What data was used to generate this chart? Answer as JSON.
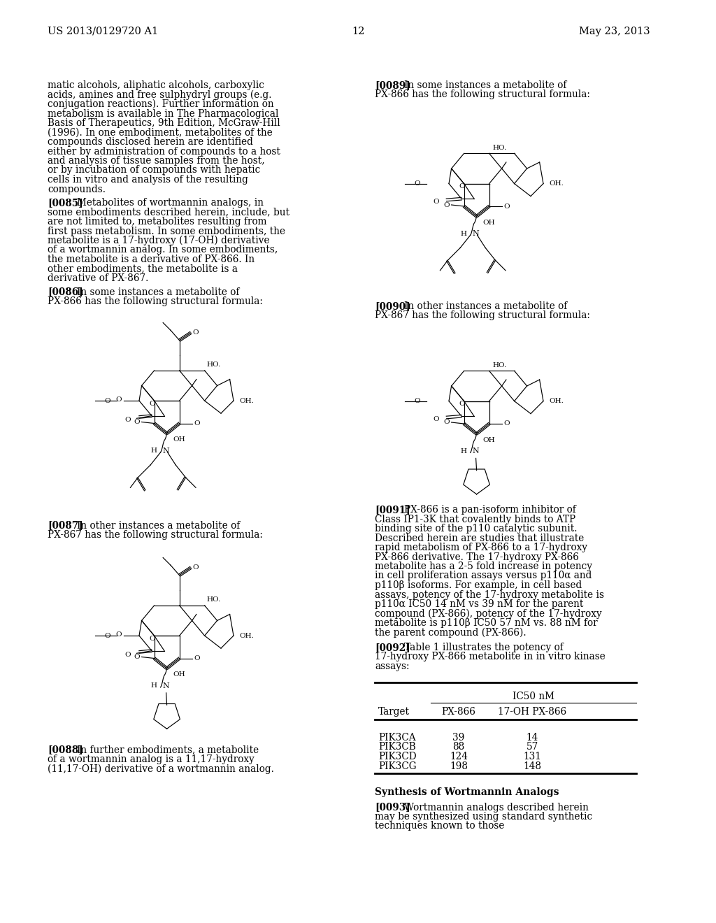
{
  "header_left": "US 2013/0129720 A1",
  "header_right": "May 23, 2013",
  "page_number": "12",
  "bg": "#ffffff",
  "para0": "matic alcohols, aliphatic alcohols, carboxylic acids, amines and free sulphydryl groups (e.g. conjugation reactions). Further information on metabolism is available in The Pharmacological Basis of Therapeutics, 9th Edition, McGraw-Hill (1996). In one embodiment, metabolites of the compounds disclosed herein are identified either by administration of compounds to a host and analysis of tissue samples from the host, or by incubation of compounds with hepatic cells in vitro and analysis of the resulting compounds.",
  "para85_tag": "[0085]",
  "para85": "Metabolites of wortmannin analogs, in some embodiments described herein, include, but are not limited to, metabolites resulting from first pass metabolism. In some embodiments, the metabolite is a 17-hydroxy (17-OH) derivative of a wortmannin analog. In some embodiments, the metabolite is a derivative of PX-866. In other embodiments, the metabolite is a derivative of PX-867.",
  "para86_tag": "[0086]",
  "para86": "In some instances a metabolite of PX-866 has the following structural formula:",
  "para87_tag": "[0087]",
  "para87": "In other instances a metabolite of PX-867 has the following structural formula:",
  "para88_tag": "[0088]",
  "para88": "In further embodiments, a metabolite of a wortmannin analog is a 11,17-hydroxy (11,17-OH) derivative of a wortmannin analog.",
  "para89_tag": "[0089]",
  "para89": "In some instances a metabolite of PX-866 has the following structural formula:",
  "para90_tag": "[0090]",
  "para90": "In other instances a metabolite of PX-867 has the following structural formula:",
  "para91_tag": "[0091]",
  "para91": "PX-866 is a pan-isoform inhibitor of Class IP1-3K that covalently binds to ATP binding site of the p110 catalytic subunit. Described herein are studies that illustrate rapid metabolism of PX-866 to a 17-hydroxy PX-866 derivative. The 17-hydroxy PX-866 metabolite has a 2-5 fold increase in potency in cell proliferation assays versus p110α and p110β isoforms. For example, in cell based assays, potency of the 17-hydroxy metabolite is p110α IC50 14 nM vs 39 nM for the parent compound (PX-866), potency of the 17-hydroxy metabolite is p110β IC50 57 nM vs. 88 nM for the parent compound (PX-866).",
  "para92_tag": "[0092]",
  "para92": "Table 1 illustrates the potency of 17-hydroxy PX-866 metabolite in in vitro kinase assays:",
  "table_ic50": "IC50 nM",
  "table_cols": [
    "Target",
    "PX-866",
    "17-OH PX-866"
  ],
  "table_rows": [
    [
      "PIK3CA",
      "39",
      "14"
    ],
    [
      "PIK3CB",
      "88",
      "57"
    ],
    [
      "PIK3CD",
      "124",
      "131"
    ],
    [
      "PIK3CG",
      "198",
      "148"
    ]
  ],
  "section_header": "Synthesis of Wortmannin Analogs",
  "para93_tag": "[0093]",
  "para93": "Wortmannin analogs described herein may be synthesized using standard synthetic techniques known to those"
}
